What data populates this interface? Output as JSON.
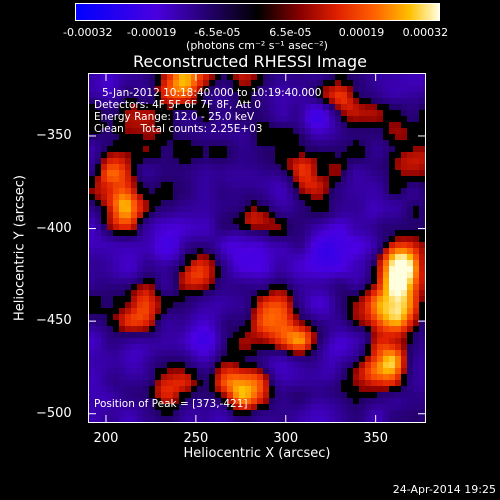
{
  "colorbar": {
    "ticks": [
      "-0.00032",
      "-0.00019",
      "-6.5e-05",
      "6.5e-05",
      "0.00019",
      "0.00032"
    ],
    "unit": "(photons cm⁻² s⁻¹ asec⁻²)",
    "colors": [
      "#0000ff",
      "#4a00e0",
      "#000000",
      "#8b0000",
      "#e02000",
      "#ff6000",
      "#ffc000",
      "#ffffe0"
    ]
  },
  "chart_data": {
    "type": "heatmap",
    "title": "Reconstructed RHESSI Image",
    "xlabel": "Heliocentric X (arcsec)",
    "ylabel": "Heliocentric Y (arcsec)",
    "xlim": [
      190,
      378
    ],
    "ylim": [
      -505,
      -316
    ],
    "x_ticks": [
      200,
      250,
      300,
      350
    ],
    "y_ticks": [
      -350,
      -400,
      -450,
      -500
    ],
    "x_tick_labels": [
      "200",
      "250",
      "300",
      "350"
    ],
    "y_tick_labels": [
      "−350",
      "−400",
      "−450",
      "−500"
    ],
    "annotations": [
      "5-Jan-2012 10:18:40.000 to 10:19:40.000",
      "Detectors: 4F 5F 6F 7F 8F, Att 0",
      "Energy Range: 12.0 - 25.0 keV",
      "Clean     Total counts: 2.25E+03"
    ],
    "peak_label": "Position of Peak = [373,-421]",
    "peak": [
      373,
      -421
    ],
    "grid": false,
    "colormap_range": [
      -0.00032,
      0.00032
    ]
  },
  "timestamp": "24-Apr-2014 19:25"
}
